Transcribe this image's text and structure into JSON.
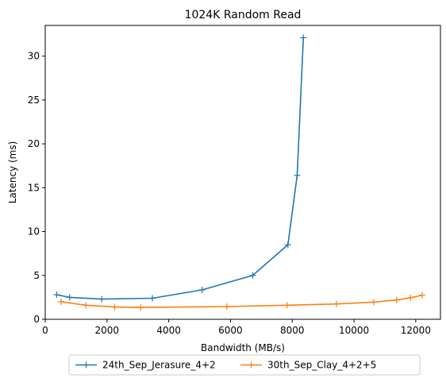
{
  "chart_data": {
    "type": "line",
    "title": "1024K  Random Read",
    "xlabel": "Bandwidth (MB/s)",
    "ylabel": "Latency (ms)",
    "xlim": [
      0,
      12800
    ],
    "ylim": [
      0,
      33.5
    ],
    "xticks": [
      0,
      2000,
      4000,
      6000,
      8000,
      10000,
      12000
    ],
    "yticks": [
      0,
      5,
      10,
      15,
      20,
      25,
      30
    ],
    "xtick_labels": [
      "0",
      "2000",
      "4000",
      "6000",
      "8000",
      "10000",
      "12000"
    ],
    "ytick_labels": [
      "0",
      "5",
      "10",
      "15",
      "20",
      "25",
      "30"
    ],
    "grid": false,
    "legend_position": "bottom-center-outside",
    "marker": "+",
    "series": [
      {
        "name": "24th_Sep_Jerasure_4+2",
        "color": "#1f77b4",
        "x": [
          370,
          790,
          1830,
          3470,
          5080,
          6720,
          7860,
          8160,
          8360
        ],
        "y": [
          2.8,
          2.5,
          2.3,
          2.4,
          3.35,
          5.0,
          8.5,
          16.4,
          32.1
        ]
      },
      {
        "name": "30th_Sep_Clay_4+2+5",
        "color": "#ff7f0e",
        "x": [
          510,
          1320,
          2250,
          3090,
          5880,
          7830,
          9430,
          10640,
          11380,
          11830,
          12210
        ],
        "y": [
          2.0,
          1.6,
          1.4,
          1.35,
          1.45,
          1.6,
          1.75,
          1.95,
          2.2,
          2.45,
          2.75
        ]
      }
    ]
  }
}
